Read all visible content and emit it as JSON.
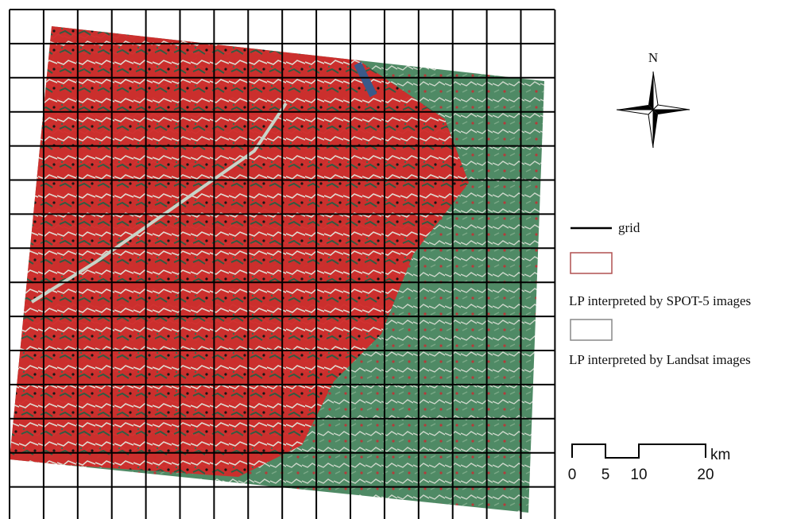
{
  "compass": {
    "label": "N"
  },
  "legend": {
    "items": [
      {
        "label": "grid"
      },
      {
        "label": "LP interpreted by SPOT-5 images"
      },
      {
        "label": "LP interpreted by Landsat images"
      }
    ]
  },
  "scale_bar": {
    "labels": [
      "0",
      "5",
      "10",
      "20"
    ],
    "unit": "km"
  }
}
